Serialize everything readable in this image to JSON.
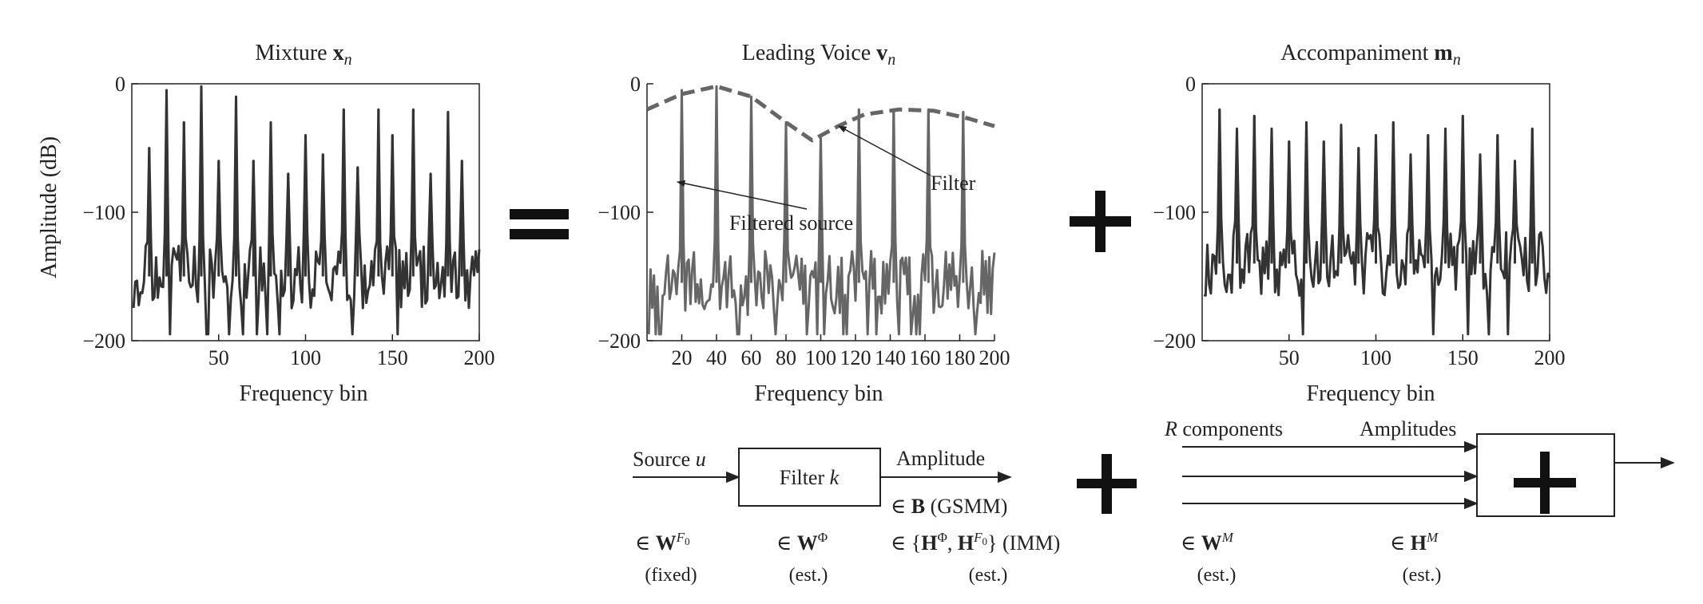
{
  "panels": {
    "mixture": {
      "title_text": "Mixture ",
      "title_math": "x",
      "title_sub": "n",
      "ylabel": "Amplitude (dB)",
      "xlabel": "Frequency bin"
    },
    "voice": {
      "title_text": "Leading Voice ",
      "title_math": "v",
      "title_sub": "n",
      "xlabel": "Frequency bin",
      "annotation_filter": "Filter",
      "annotation_source": "Filtered source"
    },
    "accompaniment": {
      "title_text": "Accompaniment ",
      "title_math": "m",
      "title_sub": "n",
      "xlabel": "Frequency bin"
    }
  },
  "operators": {
    "equals": "=",
    "plus": "+"
  },
  "chart_data": [
    {
      "type": "line",
      "name": "mixture",
      "xlim": [
        0,
        200
      ],
      "ylim": [
        -200,
        0
      ],
      "xticks": [
        50,
        100,
        150,
        200
      ],
      "yticks": [
        0,
        -100,
        -200
      ],
      "peaks": [
        {
          "x": 10,
          "y": -50
        },
        {
          "x": 20,
          "y": -5
        },
        {
          "x": 30,
          "y": -30
        },
        {
          "x": 40,
          "y": -2
        },
        {
          "x": 50,
          "y": -60
        },
        {
          "x": 60,
          "y": -10
        },
        {
          "x": 70,
          "y": -60
        },
        {
          "x": 80,
          "y": -30
        },
        {
          "x": 90,
          "y": -70
        },
        {
          "x": 100,
          "y": -40
        },
        {
          "x": 110,
          "y": -55
        },
        {
          "x": 122,
          "y": -20
        },
        {
          "x": 130,
          "y": -65
        },
        {
          "x": 142,
          "y": -20
        },
        {
          "x": 150,
          "y": -40
        },
        {
          "x": 162,
          "y": -20
        },
        {
          "x": 172,
          "y": -70
        },
        {
          "x": 182,
          "y": -22
        },
        {
          "x": 190,
          "y": -60
        }
      ],
      "noise_floor_db": -150
    },
    {
      "type": "line",
      "name": "leading-voice",
      "xlim": [
        0,
        200
      ],
      "ylim": [
        -200,
        0
      ],
      "xticks": [
        20,
        40,
        60,
        80,
        100,
        120,
        140,
        160,
        180,
        200
      ],
      "yticks": [
        0,
        -100,
        -200
      ],
      "peaks": [
        {
          "x": 20,
          "y": -5
        },
        {
          "x": 40,
          "y": -2
        },
        {
          "x": 60,
          "y": -10
        },
        {
          "x": 80,
          "y": -30
        },
        {
          "x": 100,
          "y": -40
        },
        {
          "x": 122,
          "y": -20
        },
        {
          "x": 142,
          "y": -20
        },
        {
          "x": 162,
          "y": -20
        },
        {
          "x": 182,
          "y": -22
        }
      ],
      "envelope": [
        {
          "x": 0,
          "y": -20
        },
        {
          "x": 20,
          "y": -8
        },
        {
          "x": 40,
          "y": -2
        },
        {
          "x": 60,
          "y": -10
        },
        {
          "x": 80,
          "y": -30
        },
        {
          "x": 95,
          "y": -44
        },
        {
          "x": 110,
          "y": -33
        },
        {
          "x": 125,
          "y": -24
        },
        {
          "x": 145,
          "y": -20
        },
        {
          "x": 165,
          "y": -21
        },
        {
          "x": 185,
          "y": -27
        },
        {
          "x": 200,
          "y": -33
        }
      ],
      "noise_floor_db": -155
    },
    {
      "type": "line",
      "name": "accompaniment",
      "xlim": [
        0,
        200
      ],
      "ylim": [
        -200,
        0
      ],
      "xticks": [
        50,
        100,
        150,
        200
      ],
      "yticks": [
        0,
        -100,
        -200
      ],
      "peaks": [
        {
          "x": 10,
          "y": -20
        },
        {
          "x": 20,
          "y": -35
        },
        {
          "x": 30,
          "y": -25
        },
        {
          "x": 40,
          "y": -35
        },
        {
          "x": 50,
          "y": -45
        },
        {
          "x": 60,
          "y": -30
        },
        {
          "x": 70,
          "y": -45
        },
        {
          "x": 80,
          "y": -32
        },
        {
          "x": 90,
          "y": -50
        },
        {
          "x": 100,
          "y": -40
        },
        {
          "x": 110,
          "y": -30
        },
        {
          "x": 120,
          "y": -55
        },
        {
          "x": 130,
          "y": -40
        },
        {
          "x": 140,
          "y": -35
        },
        {
          "x": 150,
          "y": -25
        },
        {
          "x": 160,
          "y": -55
        },
        {
          "x": 170,
          "y": -40
        },
        {
          "x": 180,
          "y": -60
        },
        {
          "x": 190,
          "y": -35
        }
      ],
      "noise_floor_db": -140
    }
  ],
  "block_diagram": {
    "source_label": "Source ",
    "source_var": "u",
    "filter_label": "Filter ",
    "filter_var": "k",
    "amplitude_label": "Amplitude",
    "rcomp_var": "R",
    "rcomp_label": " components",
    "amplitudes_label": "Amplitudes",
    "plus_box": "+",
    "gsmm": "(GSMM)",
    "imm": "(IMM)",
    "fixed": "(fixed)",
    "est1": "(est.)",
    "est2": "(est.)",
    "est3": "(est.)",
    "est4": "(est.)"
  }
}
